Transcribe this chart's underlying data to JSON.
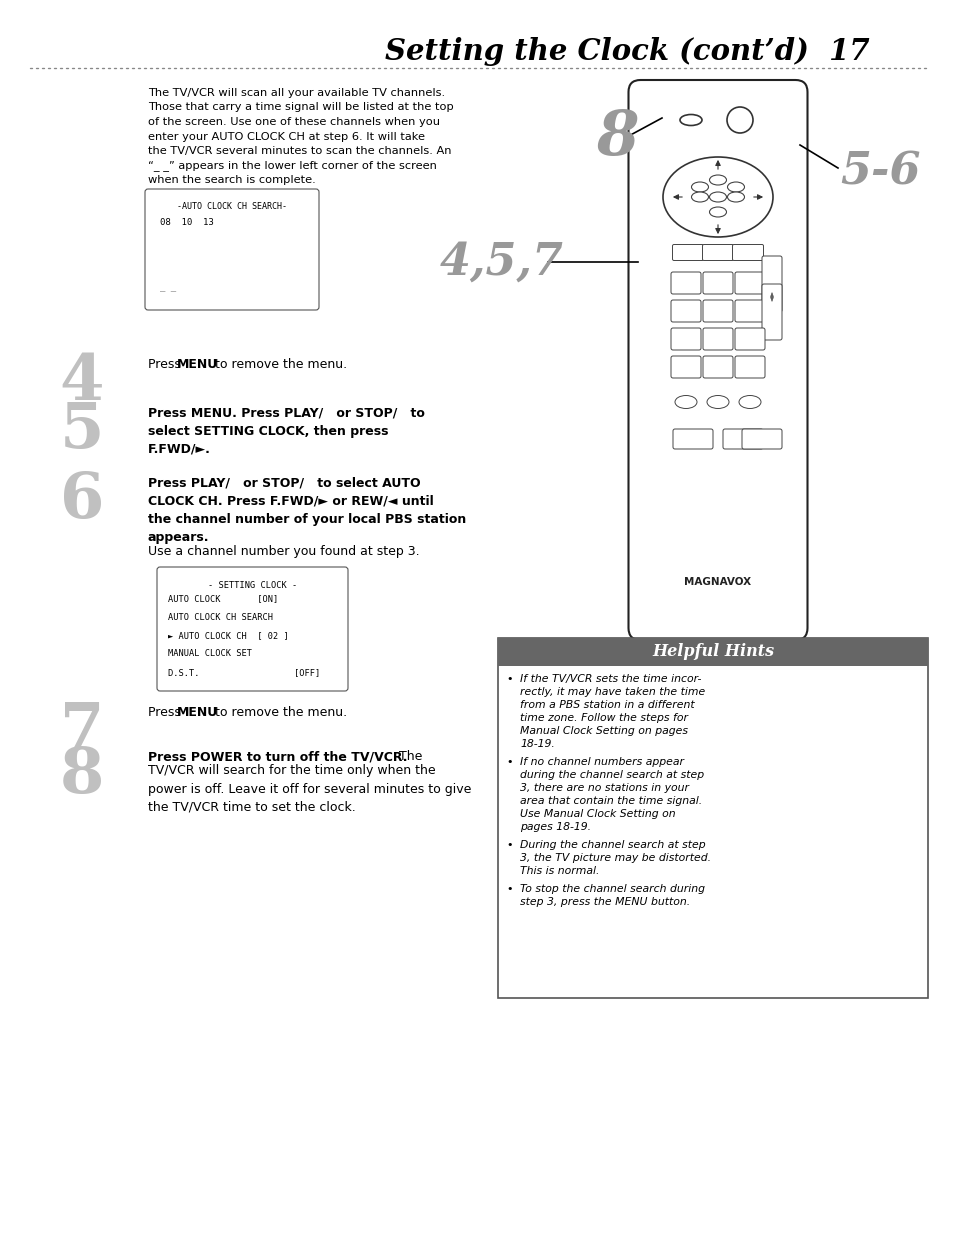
{
  "title": "Setting the Clock (cont’d)  17",
  "bg_color": "#ffffff",
  "page_width": 9.54,
  "page_height": 12.35,
  "intro_text_lines": [
    "The TV/VCR will scan all your available TV channels.",
    "Those that carry a time signal will be listed at the top",
    "of the screen. Use one of these channels when you",
    "enter your AUTO CLOCK CH at step 6. It will take",
    "the TV/VCR several minutes to scan the channels. An",
    "“_ _” appears in the lower left corner of the screen",
    "when the search is complete."
  ],
  "box1_title": "-AUTO CLOCK CH SEARCH-",
  "box1_line1": "08  10  13",
  "box1_line2": "_ _",
  "box2_title": "- SETTING CLOCK -",
  "box2_lines": [
    "AUTO CLOCK       [ON]",
    "AUTO CLOCK CH SEARCH",
    "► AUTO CLOCK CH  [ 02 ]",
    "MANUAL CLOCK SET",
    "D.S.T.                  [OFF]"
  ],
  "hints_title": "Helpful Hints",
  "hints": [
    "If the TV/VCR sets the time incor-\nrectly, it may have taken the time\nfrom a PBS station in a different\ntime zone. Follow the steps for\nManual Clock Setting on pages\n18-19.",
    "If no channel numbers appear\nduring the channel search at step\n3, there are no stations in your\narea that contain the time signal.\nUse Manual Clock Setting on\npages 18-19.",
    "During the channel search at step\n3, the TV picture may be distorted.\nThis is normal.",
    "To stop the channel search during\nstep 3, press the MENU button."
  ]
}
